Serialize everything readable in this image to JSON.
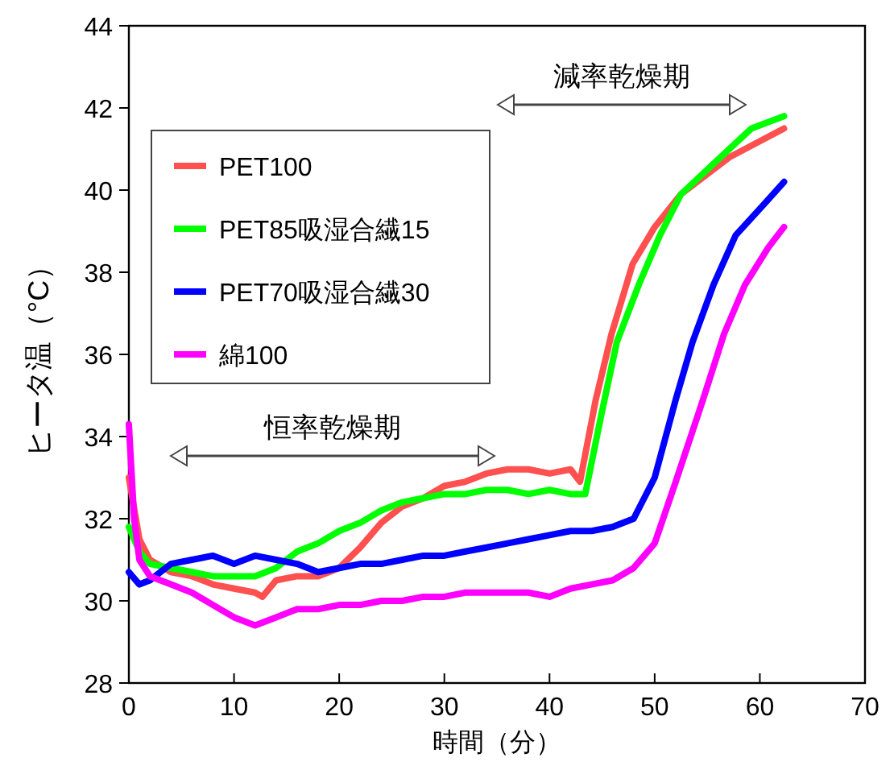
{
  "chart_data": {
    "type": "line",
    "xlabel": "時間（分）",
    "ylabel": "ヒータ温（°C）",
    "xlim": [
      0,
      70
    ],
    "xticks": [
      0,
      10,
      20,
      30,
      40,
      50,
      60,
      70
    ],
    "ylim": [
      28,
      44
    ],
    "yticks": [
      28,
      30,
      32,
      34,
      36,
      38,
      40,
      42,
      44
    ],
    "grid": false,
    "legend": "top left",
    "line_style": "solid",
    "marker": "none",
    "annotations": [
      "恒率乾燥期",
      "減率乾燥期"
    ],
    "series": [
      {
        "name": "PET100",
        "color": "#ff5050",
        "x": [
          0,
          1,
          2,
          4,
          6,
          8,
          10,
          12,
          12.7,
          14,
          16,
          18,
          20,
          22,
          24,
          26,
          28,
          30,
          32,
          34,
          36,
          38,
          40,
          42,
          42.9,
          44.4,
          45.9,
          47.9,
          50,
          52.5,
          57.1,
          62.3
        ],
        "values": [
          33,
          31.5,
          31,
          30.7,
          30.6,
          30.4,
          30.3,
          30.2,
          30.1,
          30.5,
          30.6,
          30.6,
          30.8,
          31.3,
          31.9,
          32.3,
          32.5,
          32.8,
          32.9,
          33.1,
          33.2,
          33.2,
          33.1,
          33.2,
          32.9,
          34.9,
          36.5,
          38.2,
          39.1,
          39.9,
          40.8,
          41.5
        ]
      },
      {
        "name": "PET85吸湿合繊15",
        "color": "#00ff00",
        "x": [
          0,
          1,
          2,
          4,
          6,
          8,
          10,
          12,
          14,
          16,
          18,
          20,
          22,
          24,
          26,
          28,
          30,
          32,
          34,
          36,
          38,
          40,
          42,
          43.4,
          44.9,
          46.4,
          48.5,
          50.5,
          52.5,
          57.1,
          59.2,
          62.3
        ],
        "values": [
          31.8,
          31.2,
          30.9,
          30.8,
          30.7,
          30.6,
          30.6,
          30.6,
          30.8,
          31.2,
          31.4,
          31.7,
          31.9,
          32.2,
          32.4,
          32.5,
          32.6,
          32.6,
          32.7,
          32.7,
          32.6,
          32.7,
          32.6,
          32.6,
          34.5,
          36.3,
          37.7,
          38.9,
          39.9,
          41,
          41.5,
          41.8
        ]
      },
      {
        "name": "PET70吸湿合繊30",
        "color": "#0000ff",
        "x": [
          0,
          1,
          2,
          4,
          6,
          8,
          10,
          12,
          14,
          16,
          18,
          20,
          22,
          24,
          26,
          28,
          30,
          32,
          34,
          36,
          38,
          40,
          42,
          44,
          46,
          48,
          50,
          52,
          53.6,
          55.6,
          57.7,
          60.2,
          62.3
        ],
        "values": [
          30.7,
          30.4,
          30.5,
          30.9,
          31,
          31.1,
          30.9,
          31.1,
          31,
          30.9,
          30.7,
          30.8,
          30.9,
          30.9,
          31,
          31.1,
          31.1,
          31.2,
          31.3,
          31.4,
          31.5,
          31.6,
          31.7,
          31.7,
          31.8,
          32,
          33,
          34.9,
          36.3,
          37.7,
          38.9,
          39.6,
          40.2
        ]
      },
      {
        "name": "綿100",
        "color": "#ff00ff",
        "x": [
          0,
          0.5,
          1,
          2,
          4,
          6,
          8,
          10,
          12,
          14,
          16,
          18,
          20,
          22,
          24,
          26,
          28,
          30,
          32,
          34,
          36,
          38,
          40,
          42,
          44,
          46,
          48,
          50,
          52,
          54.6,
          56.6,
          58.6,
          60.8,
          62.3
        ],
        "values": [
          34.3,
          32,
          31,
          30.6,
          30.4,
          30.2,
          29.9,
          29.6,
          29.4,
          29.6,
          29.8,
          29.8,
          29.9,
          29.9,
          30,
          30,
          30.1,
          30.1,
          30.2,
          30.2,
          30.2,
          30.2,
          30.1,
          30.3,
          30.4,
          30.5,
          30.8,
          31.4,
          32.9,
          34.9,
          36.5,
          37.7,
          38.6,
          39.1
        ]
      }
    ]
  }
}
